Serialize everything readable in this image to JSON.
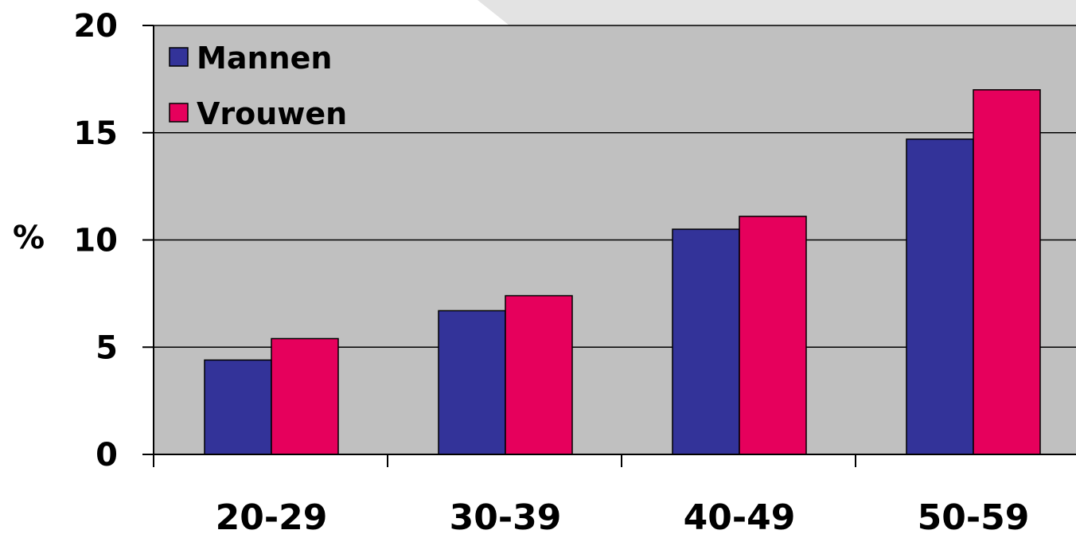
{
  "chart_data": {
    "type": "bar",
    "title": "",
    "xlabel": "",
    "ylabel": "%",
    "categories": [
      "20-29",
      "30-39",
      "40-49",
      "50-59"
    ],
    "series": [
      {
        "name": "Mannen",
        "values": [
          4.4,
          6.7,
          10.5,
          14.7
        ]
      },
      {
        "name": "Vrouwen",
        "values": [
          5.4,
          7.4,
          11.1,
          17.0
        ]
      }
    ],
    "ylim": [
      0,
      20
    ],
    "yticks": [
      "0",
      "5",
      "10",
      "15",
      "20"
    ],
    "grid": true,
    "legend_position": "top-left",
    "colors": {
      "Mannen": "#333399",
      "Vrouwen": "#e6005c",
      "plot_background": "#c0c0c0",
      "grid": "#000000"
    }
  }
}
